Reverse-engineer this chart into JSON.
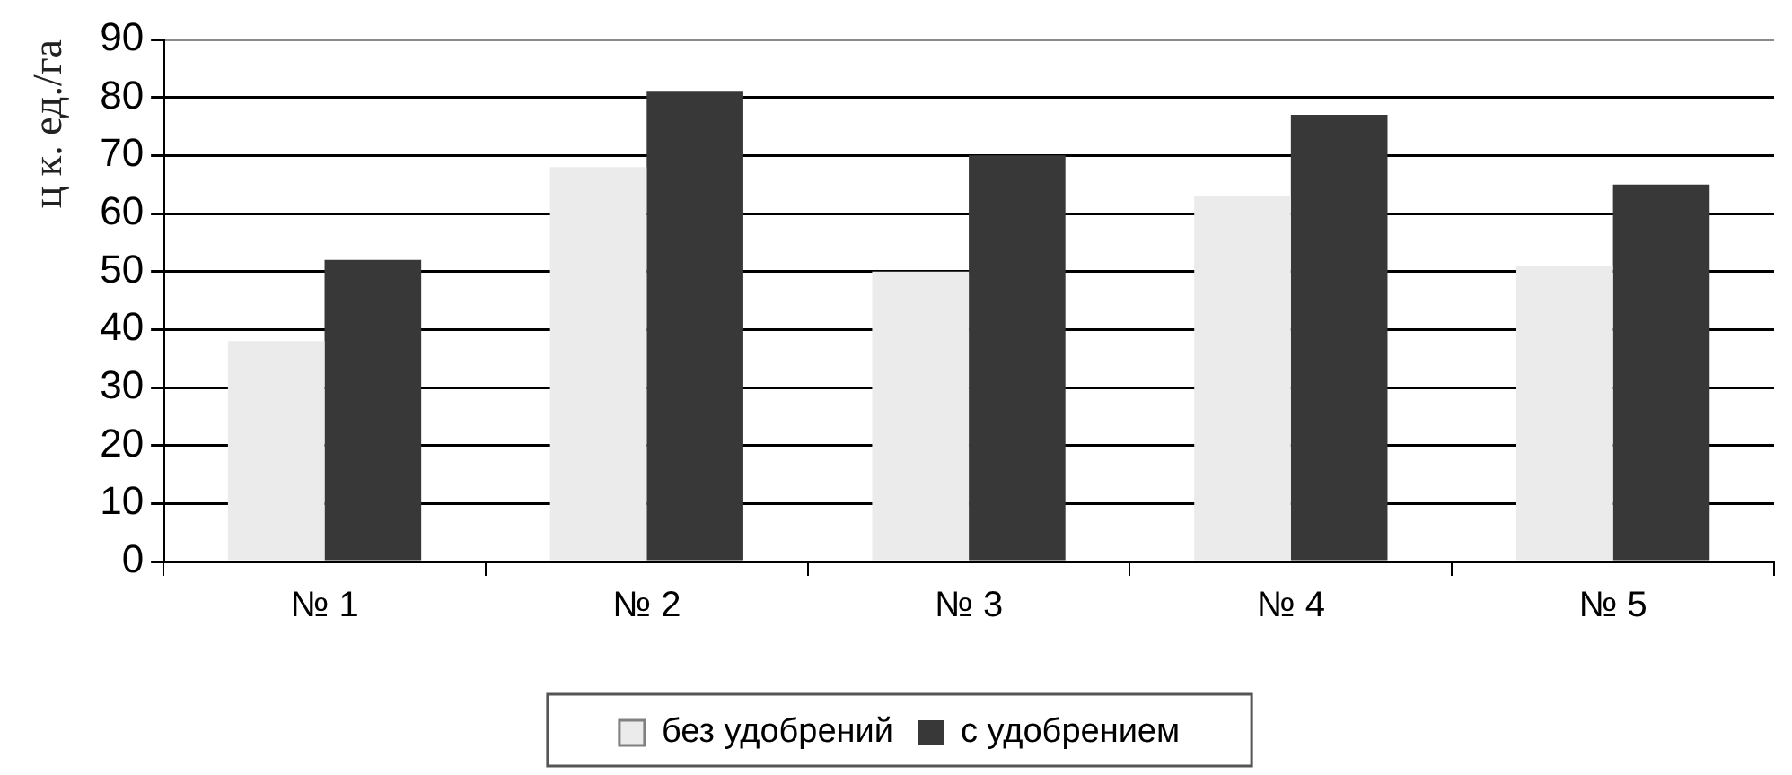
{
  "chart_data": {
    "type": "bar",
    "ylabel": "ц к. ед./га",
    "categories": [
      "№ 1",
      "№ 2",
      "№ 3",
      "№ 4",
      "№ 5"
    ],
    "series": [
      {
        "name": "без удобрений",
        "color": "#ebebeb",
        "values": [
          38,
          68,
          50,
          63,
          51
        ]
      },
      {
        "name": "с удобрением",
        "color": "#383838",
        "values": [
          52,
          81,
          70,
          77,
          65
        ]
      }
    ],
    "ylim": [
      0,
      90
    ],
    "yticks": [
      0,
      10,
      20,
      30,
      40,
      50,
      60,
      70,
      80,
      90
    ],
    "grid": "y",
    "legend": "bottom"
  }
}
